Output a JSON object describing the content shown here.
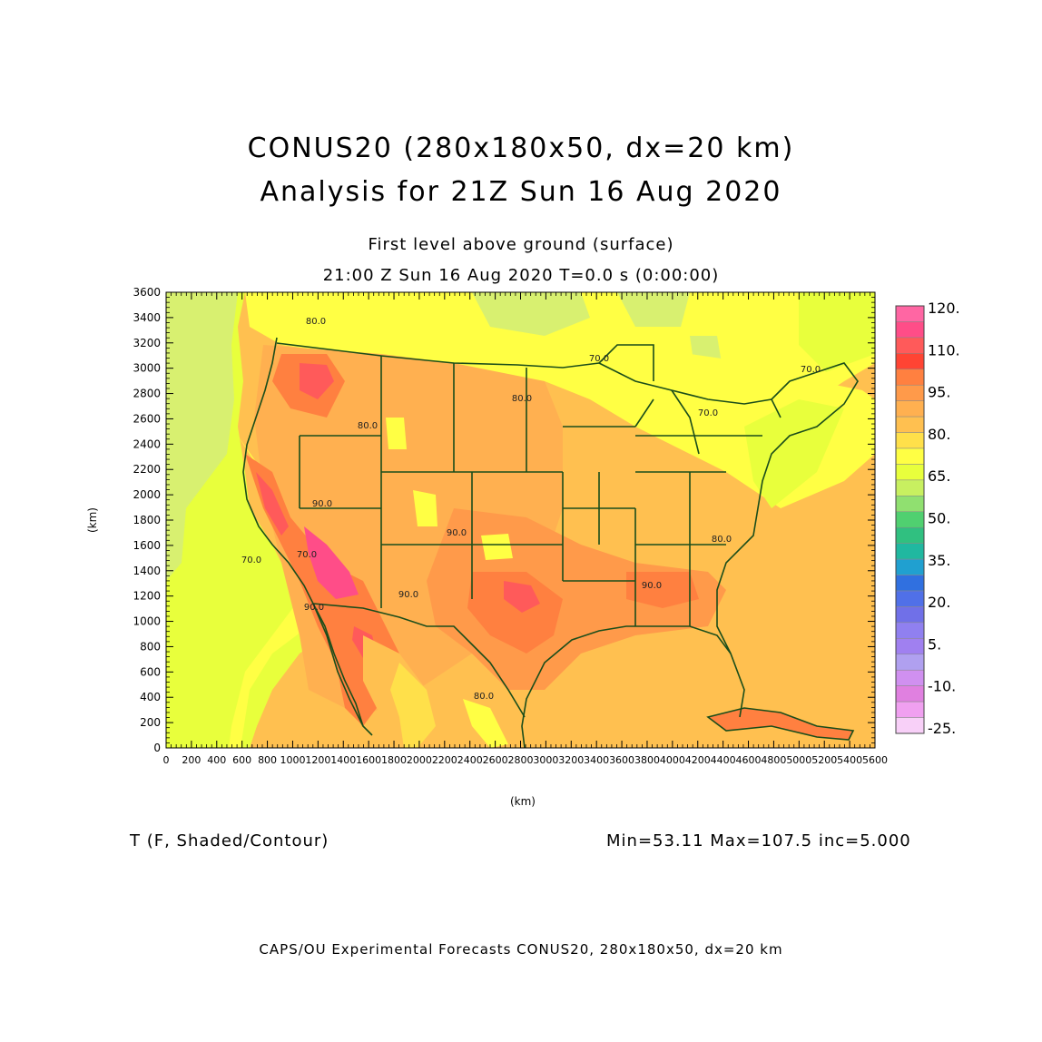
{
  "title": {
    "line1": "CONUS20 (280x180x50, dx=20 km)",
    "line2": "Analysis for 21Z Sun 16 Aug 2020"
  },
  "subtitle": {
    "line1": "First level above ground (surface)",
    "line2": "21:00 Z Sun 16 Aug 2020    T=0.0 s (0:00:00)"
  },
  "variable_label": "T (F, Shaded/Contour)",
  "stats": "Min=53.11 Max=107.5 inc=5.000",
  "footer": "CAPS/OU Experimental Forecasts  CONUS20, 280x180x50, dx=20 km",
  "axes": {
    "x_label": "(km)",
    "y_label": "(km)",
    "x_ticks": [
      "0",
      "200",
      "400",
      "600",
      "800",
      "1000",
      "1200",
      "1400",
      "1600",
      "1800",
      "2000",
      "2200",
      "2400",
      "2600",
      "2800",
      "3000",
      "3200",
      "3400",
      "3600",
      "3800",
      "4000",
      "4200",
      "4400",
      "4600",
      "4800",
      "5000",
      "5200",
      "5400",
      "5600"
    ],
    "y_ticks": [
      "0",
      "200",
      "400",
      "600",
      "800",
      "1000",
      "1200",
      "1400",
      "1600",
      "1800",
      "2000",
      "2200",
      "2400",
      "2600",
      "2800",
      "3000",
      "3200",
      "3400",
      "3600"
    ],
    "x_range": [
      0,
      5600
    ],
    "y_range": [
      0,
      3600
    ]
  },
  "colorbar": {
    "labels": [
      "120.",
      "110.",
      "95.",
      "80.",
      "65.",
      "50.",
      "35.",
      "20.",
      "5.",
      "-10.",
      "-25."
    ],
    "colors": [
      "#ff66a3",
      "#ff4d88",
      "#ff5a5a",
      "#ff4433",
      "#ff8040",
      "#ff9a4a",
      "#ffb050",
      "#ffc050",
      "#ffe04a",
      "#ffff44",
      "#e8ff3c",
      "#c8f060",
      "#90e070",
      "#50d070",
      "#30c080",
      "#20b8a0",
      "#20a0d0",
      "#3070e0",
      "#5070e8",
      "#7070e8",
      "#9080f0",
      "#a080f0",
      "#b0a0f0",
      "#d090f0",
      "#e080e0",
      "#f0a0f0",
      "#f8d0f8"
    ]
  },
  "map_contour_labels": [
    "80.0",
    "80.0",
    "70.0",
    "80.0",
    "70.0",
    "70.0",
    "90.0",
    "70.0",
    "90.0",
    "90.0",
    "80.0",
    "80.0",
    "90.0",
    "90.0",
    "70.0"
  ],
  "colors": {
    "background_field": "#ffc050",
    "ocean_cool": "#d8f070",
    "ocean_mid": "#e8ff3c",
    "hot": "#ff8040",
    "very_hot": "#ff5a5a",
    "extreme": "#ff4d88",
    "boundary": "#1a4d1a"
  }
}
